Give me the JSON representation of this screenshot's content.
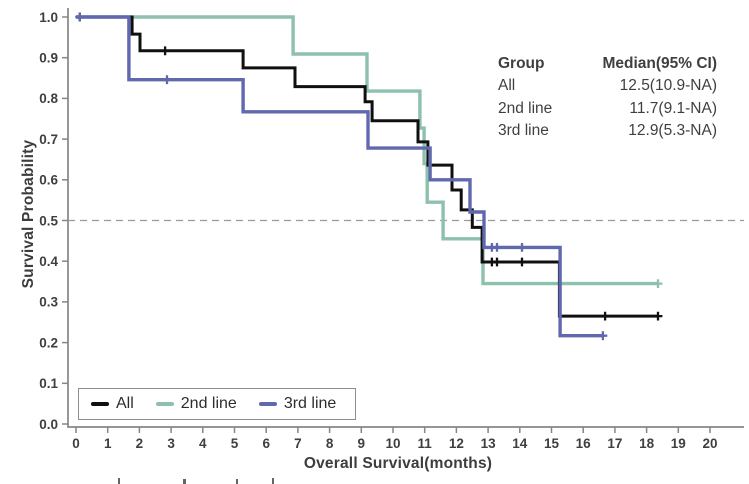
{
  "chart_data": {
    "type": "line",
    "subtype": "kaplan-meier-step",
    "title": "",
    "xlabel": "Overall Survival(months)",
    "ylabel": "Survival Probability",
    "xlim": [
      0,
      20.5
    ],
    "ylim": [
      0.0,
      1.0
    ],
    "grid": "off",
    "x_ticks": [
      0,
      1,
      2,
      3,
      4,
      5,
      6,
      7,
      8,
      9,
      10,
      11,
      12,
      13,
      14,
      15,
      16,
      17,
      18,
      19,
      20
    ],
    "x_tick_labels": [
      "0",
      "1",
      "2",
      "3",
      "4",
      "5",
      "6",
      "7",
      "8",
      "9",
      "10",
      "11",
      "12",
      "13",
      "14",
      "15",
      "16",
      "17",
      "18",
      "19",
      "20"
    ],
    "y_ticks": [
      0.0,
      0.1,
      0.2,
      0.3,
      0.4,
      0.5,
      0.6,
      0.7,
      0.8,
      0.9,
      1.0
    ],
    "y_tick_labels": [
      "0.0",
      "0.1",
      "0.2",
      "0.3",
      "0.4",
      "0.5",
      "0.6",
      "0.7",
      "0.8",
      "0.9",
      "1.0"
    ],
    "reference_line": {
      "y": 0.5,
      "style": "dashed",
      "color": "#9b9b9b"
    },
    "series": [
      {
        "id": "all",
        "name": "All",
        "color": "#101010",
        "median": "12.5(10.9-NA)",
        "steps": [
          [
            0,
            1.0
          ],
          [
            1.77,
            0.958
          ],
          [
            2.02,
            0.917
          ],
          [
            5.27,
            0.875
          ],
          [
            6.91,
            0.829
          ],
          [
            9.12,
            0.792
          ],
          [
            9.34,
            0.745
          ],
          [
            10.79,
            0.693
          ],
          [
            11.1,
            0.636
          ],
          [
            11.86,
            0.575
          ],
          [
            12.15,
            0.526
          ],
          [
            12.5,
            0.483
          ],
          [
            12.81,
            0.398
          ],
          [
            15.25,
            0.265
          ]
        ],
        "end": 18.36,
        "censors": [
          [
            0.12,
            1.0
          ],
          [
            2.81,
            0.917
          ],
          [
            13.12,
            0.398
          ],
          [
            13.28,
            0.398
          ],
          [
            14.07,
            0.398
          ],
          [
            16.69,
            0.265
          ],
          [
            18.36,
            0.265
          ]
        ]
      },
      {
        "id": "second-line",
        "name": "2nd line",
        "color": "#8dc1ad",
        "median": "11.7(9.1-NA)",
        "steps": [
          [
            0,
            1.0
          ],
          [
            6.85,
            0.909
          ],
          [
            9.18,
            0.818
          ],
          [
            10.85,
            0.727
          ],
          [
            10.98,
            0.64
          ],
          [
            11.08,
            0.545
          ],
          [
            11.58,
            0.455
          ],
          [
            12.84,
            0.345
          ]
        ],
        "end": 18.36,
        "censors": [
          [
            18.36,
            0.345
          ]
        ]
      },
      {
        "id": "third-line",
        "name": "3rd line",
        "color": "#6069ad",
        "median": "12.9(5.3-NA)",
        "steps": [
          [
            0,
            1.0
          ],
          [
            1.67,
            0.846
          ],
          [
            5.27,
            0.767
          ],
          [
            9.21,
            0.678
          ],
          [
            11.17,
            0.6
          ],
          [
            12.43,
            0.521
          ],
          [
            12.87,
            0.434
          ],
          [
            15.27,
            0.217
          ]
        ],
        "end": 16.62,
        "censors": [
          [
            0.12,
            1.0
          ],
          [
            2.87,
            0.846
          ],
          [
            13.12,
            0.434
          ],
          [
            13.28,
            0.434
          ],
          [
            14.07,
            0.434
          ],
          [
            16.62,
            0.217
          ]
        ]
      }
    ],
    "draw_order": [
      1,
      0,
      2
    ],
    "legend": {
      "position": "bottom-left"
    },
    "annotation": {
      "header": {
        "group": "Group",
        "median": "Median(95% CI)"
      },
      "rows": [
        {
          "group": "All",
          "median": "12.5(10.9-NA)"
        },
        {
          "group": "2nd line",
          "median": "11.7(9.1-NA)"
        },
        {
          "group": "3rd line",
          "median": "12.9(5.3-NA)"
        }
      ]
    }
  }
}
